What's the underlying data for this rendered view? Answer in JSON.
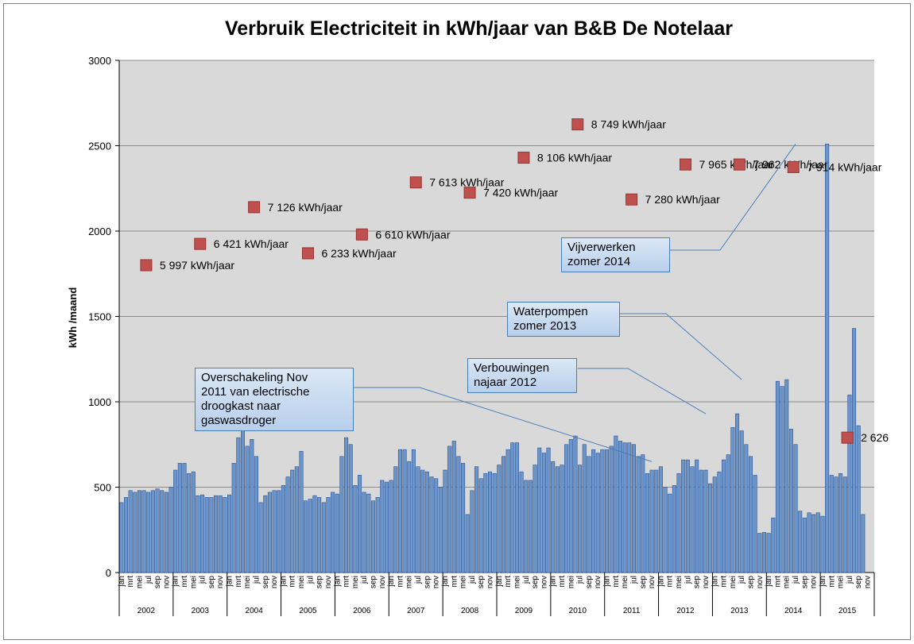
{
  "chart_data": {
    "type": "bar",
    "title": "Verbruik Electriciteit in kWh/jaar van B&B De Notelaar",
    "ylabel": "kWh /maand",
    "ylim": [
      0,
      3000
    ],
    "yticks": [
      0,
      500,
      1000,
      1500,
      2000,
      2500,
      3000
    ],
    "grid": true,
    "month_labels": [
      "jan",
      "mrt",
      "mei",
      "jul",
      "sep",
      "nov"
    ],
    "years": [
      "2002",
      "2003",
      "2004",
      "2005",
      "2006",
      "2007",
      "2008",
      "2009",
      "2010",
      "2011",
      "2012",
      "2013",
      "2014",
      "2015"
    ],
    "series": [
      {
        "type": "bar",
        "color": "#6b95c8",
        "values": [
          410,
          440,
          480,
          470,
          480,
          480,
          470,
          480,
          490,
          480,
          470,
          500,
          600,
          640,
          640,
          580,
          590,
          450,
          455,
          440,
          440,
          450,
          450,
          440,
          455,
          640,
          790,
          850,
          740,
          780,
          680,
          410,
          450,
          470,
          480,
          480,
          510,
          560,
          600,
          620,
          710,
          420,
          430,
          450,
          440,
          410,
          440,
          470,
          460,
          680,
          790,
          750,
          510,
          570,
          470,
          460,
          420,
          440,
          540,
          530,
          540,
          620,
          720,
          720,
          650,
          720,
          620,
          600,
          590,
          560,
          550,
          500,
          600,
          740,
          770,
          680,
          640,
          340,
          480,
          620,
          550,
          580,
          590,
          580,
          630,
          680,
          720,
          760,
          760,
          590,
          540,
          540,
          630,
          730,
          700,
          730,
          650,
          620,
          630,
          750,
          780,
          800,
          630,
          750,
          680,
          720,
          700,
          720,
          720,
          740,
          800,
          770,
          760,
          760,
          750,
          680,
          690,
          580,
          600,
          600,
          620,
          500,
          460,
          510,
          580,
          660,
          660,
          620,
          660,
          600,
          600,
          520,
          560,
          590,
          660,
          690,
          850,
          930,
          830,
          750,
          680,
          570,
          230,
          235,
          230,
          320,
          1120,
          1090,
          1130,
          840,
          750,
          360,
          320,
          350,
          340,
          350,
          330,
          2510,
          570,
          560,
          580,
          560,
          1040,
          1430,
          860,
          340
        ]
      },
      {
        "type": "scatter",
        "marker": "square",
        "color": "#c0504d",
        "points": [
          {
            "year": "2002",
            "y": 1800,
            "label": "5 997 kWh/jaar"
          },
          {
            "year": "2003",
            "y": 1925,
            "label": "6 421 kWh/jaar"
          },
          {
            "year": "2004",
            "y": 2140,
            "label": "7 126 kWh/jaar"
          },
          {
            "year": "2005",
            "y": 1870,
            "label": "6 233 kWh/jaar"
          },
          {
            "year": "2006",
            "y": 1980,
            "label": "6 610 kWh/jaar"
          },
          {
            "year": "2007",
            "y": 2285,
            "label": "7 613 kWh/jaar"
          },
          {
            "year": "2008",
            "y": 2225,
            "label": "7 420 kWh/jaar"
          },
          {
            "year": "2009",
            "y": 2430,
            "label": "8 106 kWh/jaar"
          },
          {
            "year": "2010",
            "y": 2625,
            "label": "8 749 kWh/jaar"
          },
          {
            "year": "2011",
            "y": 2185,
            "label": "7 280 kWh/jaar"
          },
          {
            "year": "2012",
            "y": 2390,
            "label": "7 965 kWh/jaar"
          },
          {
            "year": "2013",
            "y": 2390,
            "label": "7 962 kWh/jaar"
          },
          {
            "year": "2014",
            "y": 2375,
            "label": "7 914 kWh/jaar"
          },
          {
            "year": "2015",
            "y": 790,
            "label": "2 626"
          }
        ]
      }
    ],
    "annotations": [
      {
        "text": "Overschakeling  Nov 2011 van electrische droogkast naar gaswasdroger",
        "lines": [
          "Overschakeling  Nov",
          "2011 van electrische",
          "droogkast naar",
          "gaswasdroger"
        ]
      },
      {
        "text": "Verbouwingen najaar 2012",
        "lines": [
          "Verbouwingen",
          "najaar 2012"
        ]
      },
      {
        "text": "Waterpompen zomer 2013",
        "lines": [
          "Waterpompen",
          "zomer 2013"
        ]
      },
      {
        "text": "Vijverwerken zomer 2014",
        "lines": [
          "Vijverwerken",
          "zomer 2014"
        ]
      }
    ]
  }
}
